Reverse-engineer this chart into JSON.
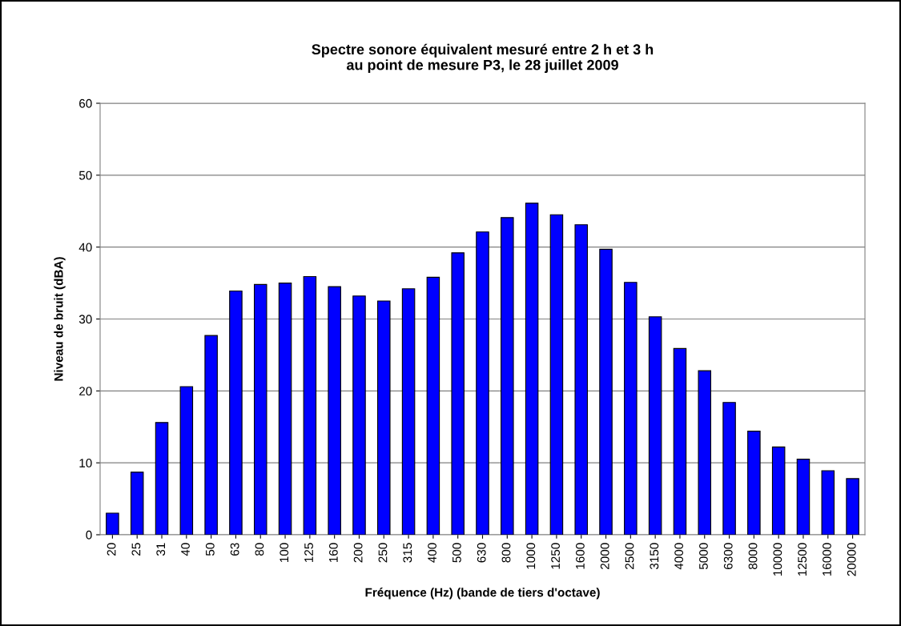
{
  "chart_data": {
    "type": "bar",
    "title": "Spectre sonore équivalent mesuré entre 2 h et 3 h\nau point de mesure P3, le 28 juillet 2009",
    "xlabel": "Fréquence (Hz) (bande de tiers d'octave)",
    "ylabel": "Niveau de bruit (dBA)",
    "categories": [
      "20",
      "25",
      "31",
      "40",
      "50",
      "63",
      "80",
      "100",
      "125",
      "160",
      "200",
      "250",
      "315",
      "400",
      "500",
      "630",
      "800",
      "1000",
      "1250",
      "1600",
      "2000",
      "2500",
      "3150",
      "4000",
      "5000",
      "6300",
      "8000",
      "10000",
      "12500",
      "16000",
      "20000"
    ],
    "values": [
      3.0,
      8.7,
      15.6,
      20.6,
      27.7,
      33.9,
      34.8,
      35.0,
      35.9,
      34.5,
      33.2,
      32.5,
      34.2,
      35.8,
      39.2,
      42.1,
      44.1,
      46.1,
      44.5,
      43.1,
      39.7,
      35.1,
      30.3,
      25.9,
      22.8,
      18.4,
      14.4,
      12.2,
      10.5,
      8.9,
      7.8
    ],
    "color": "#0000ff",
    "ylim": [
      0,
      60
    ],
    "yticks": [
      0,
      10,
      20,
      30,
      40,
      50,
      60
    ],
    "grid": "y"
  }
}
